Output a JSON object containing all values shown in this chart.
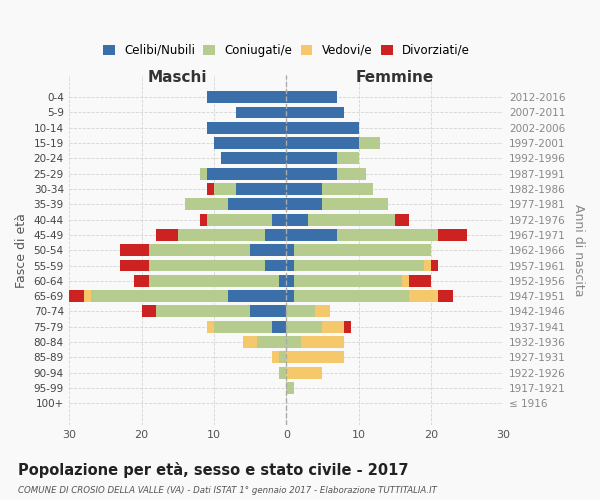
{
  "age_groups": [
    "100+",
    "95-99",
    "90-94",
    "85-89",
    "80-84",
    "75-79",
    "70-74",
    "65-69",
    "60-64",
    "55-59",
    "50-54",
    "45-49",
    "40-44",
    "35-39",
    "30-34",
    "25-29",
    "20-24",
    "15-19",
    "10-14",
    "5-9",
    "0-4"
  ],
  "birth_years": [
    "≤ 1916",
    "1917-1921",
    "1922-1926",
    "1927-1931",
    "1932-1936",
    "1937-1941",
    "1942-1946",
    "1947-1951",
    "1952-1956",
    "1957-1961",
    "1962-1966",
    "1967-1971",
    "1972-1976",
    "1977-1981",
    "1982-1986",
    "1987-1991",
    "1992-1996",
    "1997-2001",
    "2002-2006",
    "2007-2011",
    "2012-2016"
  ],
  "maschi": {
    "celibi": [
      0,
      0,
      0,
      0,
      0,
      2,
      5,
      8,
      1,
      3,
      5,
      3,
      2,
      8,
      7,
      11,
      9,
      10,
      11,
      7,
      11
    ],
    "coniugati": [
      0,
      0,
      1,
      1,
      4,
      8,
      13,
      19,
      18,
      16,
      14,
      12,
      9,
      6,
      3,
      1,
      0,
      0,
      0,
      0,
      0
    ],
    "vedovi": [
      0,
      0,
      0,
      1,
      2,
      1,
      0,
      1,
      0,
      0,
      0,
      0,
      0,
      0,
      0,
      0,
      0,
      0,
      0,
      0,
      0
    ],
    "divorziati": [
      0,
      0,
      0,
      0,
      0,
      0,
      2,
      2,
      2,
      4,
      4,
      3,
      1,
      0,
      1,
      0,
      0,
      0,
      0,
      0,
      0
    ]
  },
  "femmine": {
    "nubili": [
      0,
      0,
      0,
      0,
      0,
      0,
      0,
      1,
      1,
      1,
      1,
      7,
      3,
      5,
      5,
      7,
      7,
      10,
      10,
      8,
      7
    ],
    "coniugate": [
      0,
      1,
      0,
      0,
      2,
      5,
      4,
      16,
      15,
      18,
      19,
      14,
      12,
      9,
      7,
      4,
      3,
      3,
      0,
      0,
      0
    ],
    "vedove": [
      0,
      0,
      5,
      8,
      6,
      3,
      2,
      4,
      1,
      1,
      0,
      0,
      0,
      0,
      0,
      0,
      0,
      0,
      0,
      0,
      0
    ],
    "divorziate": [
      0,
      0,
      0,
      0,
      0,
      1,
      0,
      2,
      3,
      1,
      0,
      4,
      2,
      0,
      0,
      0,
      0,
      0,
      0,
      0,
      0
    ]
  },
  "colors": {
    "celibi_nubili": "#3b6faa",
    "coniugati": "#b5cc8e",
    "vedovi": "#f5c96b",
    "divorziati": "#cc2222"
  },
  "title": "Popolazione per età, sesso e stato civile - 2017",
  "subtitle": "COMUNE DI CROSIO DELLA VALLE (VA) - Dati ISTAT 1° gennaio 2017 - Elaborazione TUTTITALIA.IT",
  "xlabel_left": "Maschi",
  "xlabel_right": "Femmine",
  "ylabel": "Fasce di età",
  "ylabel_right": "Anni di nascita",
  "xlim": 30,
  "bg_color": "#f9f9f9",
  "grid_color": "#cccccc"
}
